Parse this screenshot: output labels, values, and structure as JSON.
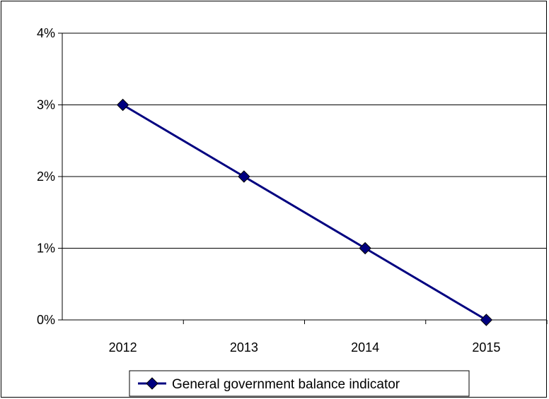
{
  "chart_data": {
    "type": "line",
    "categories": [
      "2012",
      "2013",
      "2014",
      "2015"
    ],
    "series": [
      {
        "name": "General government balance indicator",
        "values": [
          3,
          2,
          1,
          0
        ],
        "color": "#000080",
        "marker": "diamond"
      }
    ],
    "y_ticks": [
      "0%",
      "1%",
      "2%",
      "3%",
      "4%"
    ],
    "ylim": [
      0,
      4
    ],
    "y_unit": "%",
    "grid": "horizontal",
    "legend_position": "bottom"
  }
}
